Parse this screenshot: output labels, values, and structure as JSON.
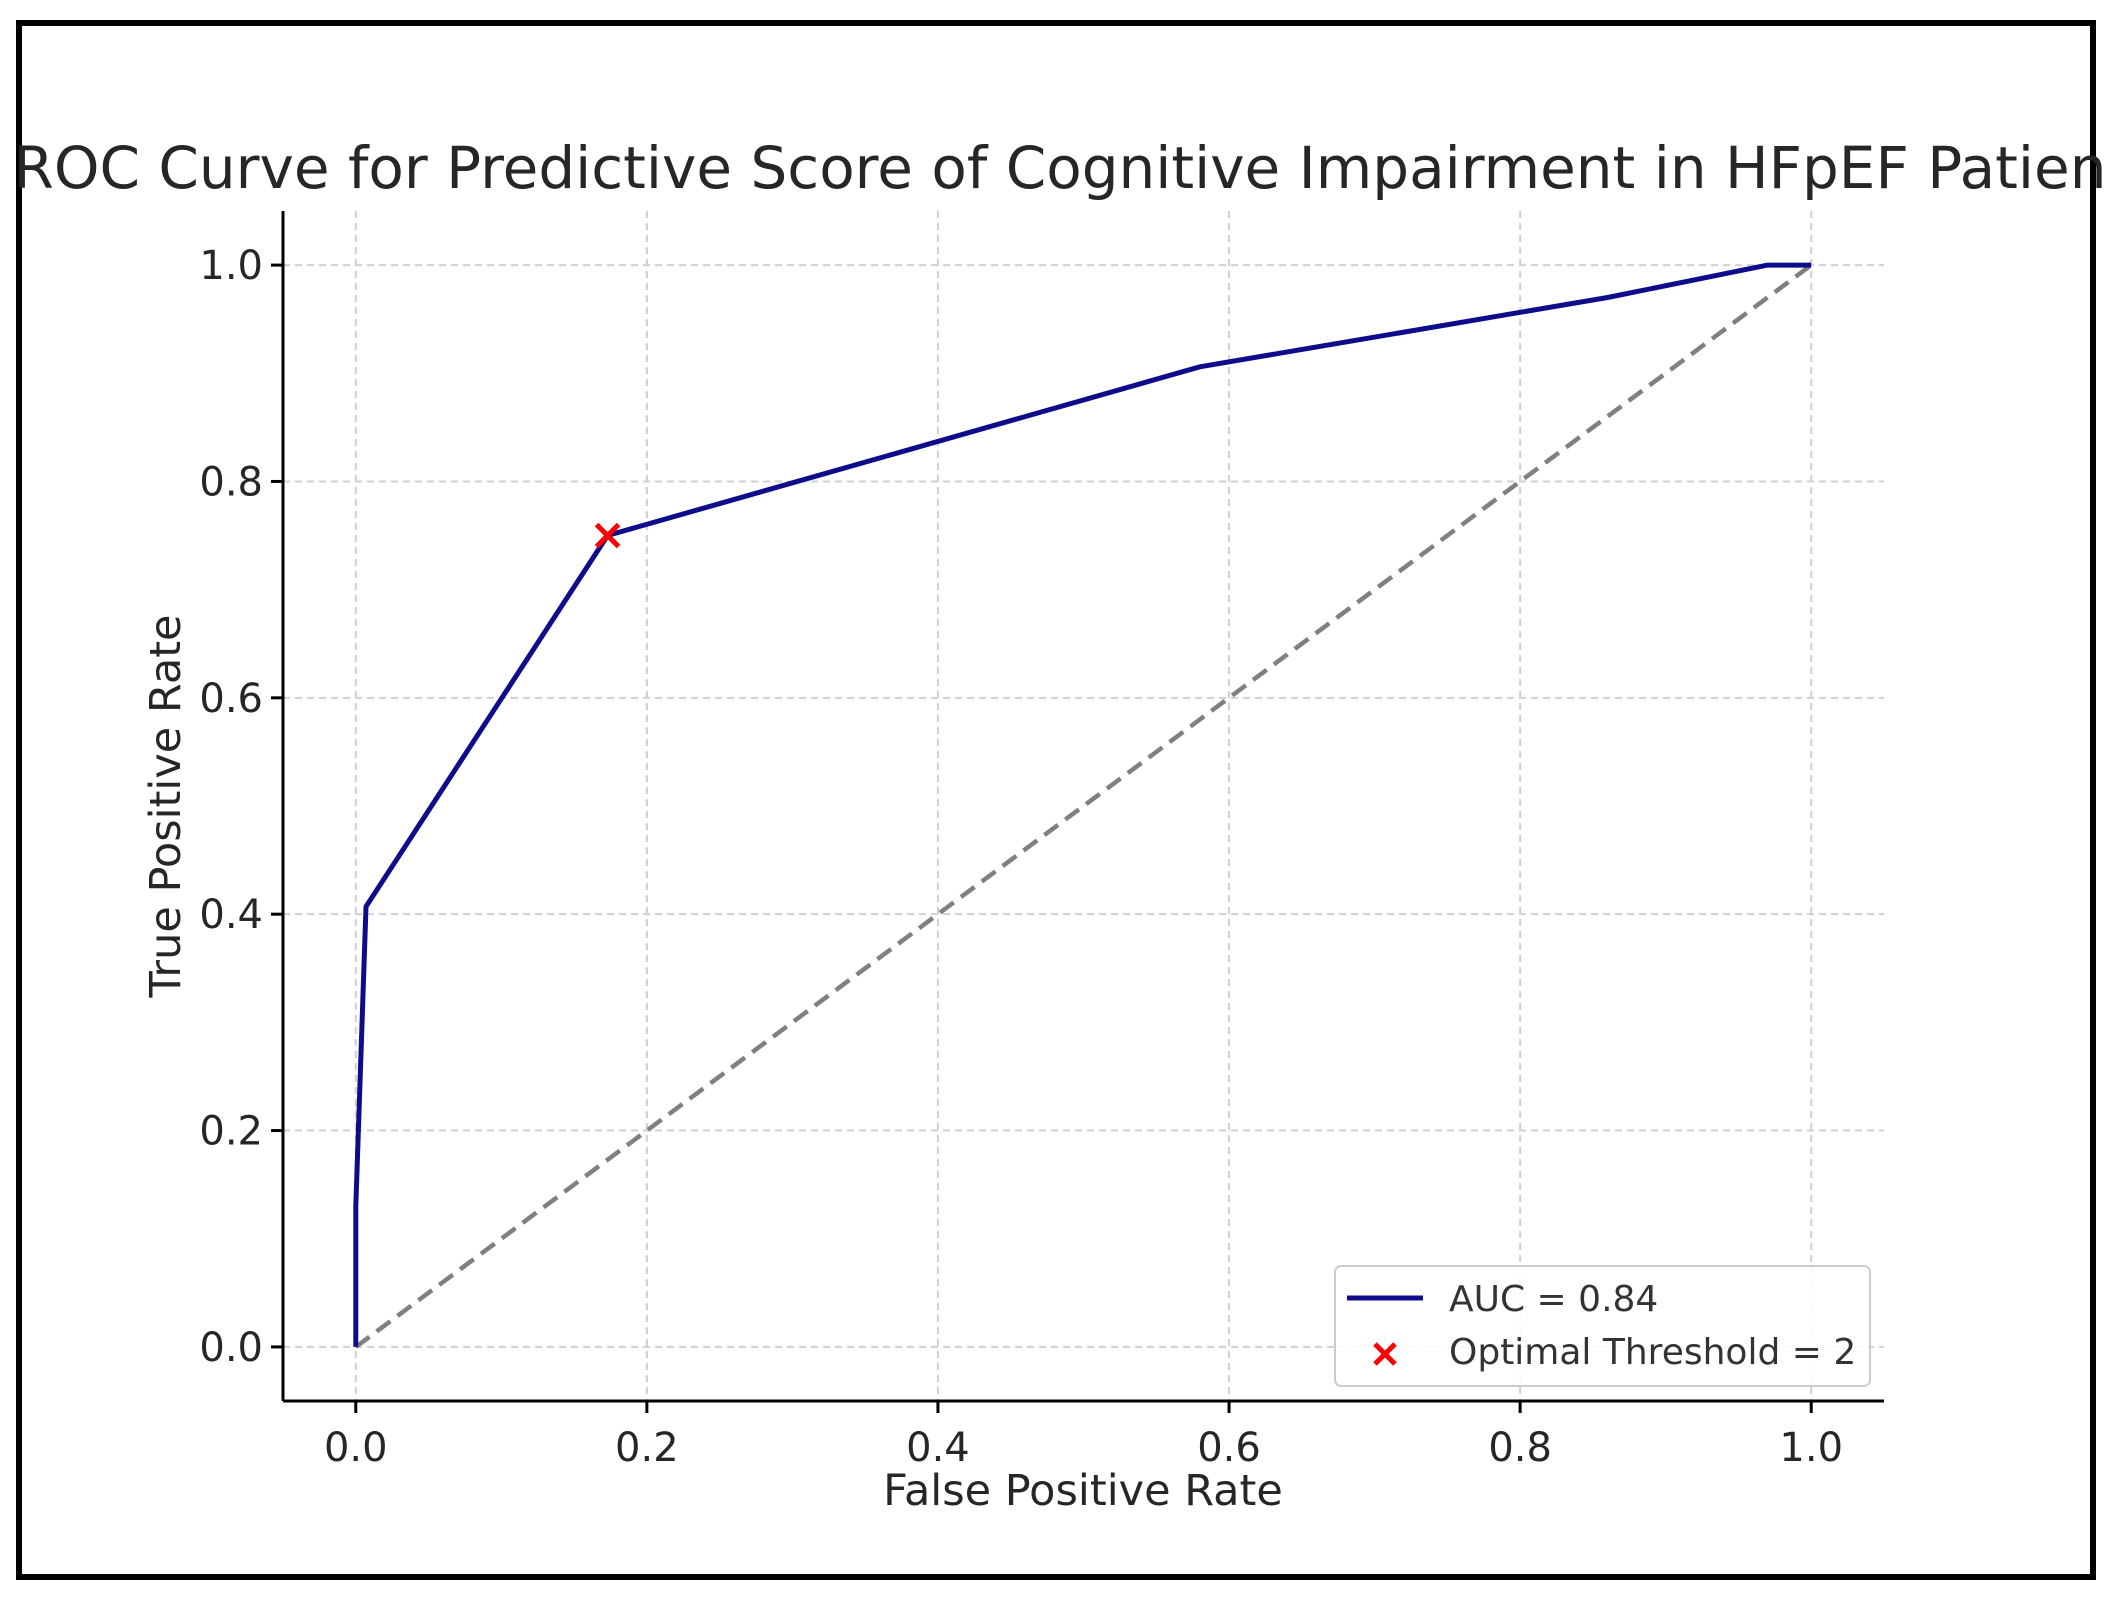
{
  "chart_data": {
    "type": "line",
    "title": "ROC Curve for Predictive Score of Cognitive Impairment in HFpEF Patien",
    "xlabel": "False Positive Rate",
    "ylabel": "True Positive Rate",
    "xlim": [
      -0.05,
      1.05
    ],
    "ylim": [
      -0.05,
      1.05
    ],
    "x_ticks": [
      0.0,
      0.2,
      0.4,
      0.6,
      0.8,
      1.0
    ],
    "y_ticks": [
      0.0,
      0.2,
      0.4,
      0.6,
      0.8,
      1.0
    ],
    "x_tick_labels": [
      "0.0",
      "0.2",
      "0.4",
      "0.6",
      "0.8",
      "1.0"
    ],
    "y_tick_labels": [
      "0.0",
      "0.2",
      "0.4",
      "0.6",
      "0.8",
      "1.0"
    ],
    "grid": true,
    "legend_position": "lower-right",
    "series": [
      {
        "name": "AUC = 0.84",
        "color": "#0d0d8c",
        "x": [
          0.0,
          0.0,
          0.007,
          0.173,
          0.58,
          0.86,
          0.97,
          1.0
        ],
        "y": [
          0.0,
          0.13,
          0.407,
          0.75,
          0.906,
          0.97,
          1.0,
          1.0
        ]
      }
    ],
    "reference_line": {
      "x": [
        0.0,
        1.0
      ],
      "y": [
        0.0,
        1.0
      ],
      "color": "#808080",
      "style": "dashed"
    },
    "marker": {
      "name": "Optimal Threshold = 2",
      "x": 0.173,
      "y": 0.75,
      "color": "#ff0000",
      "symbol": "x"
    }
  }
}
